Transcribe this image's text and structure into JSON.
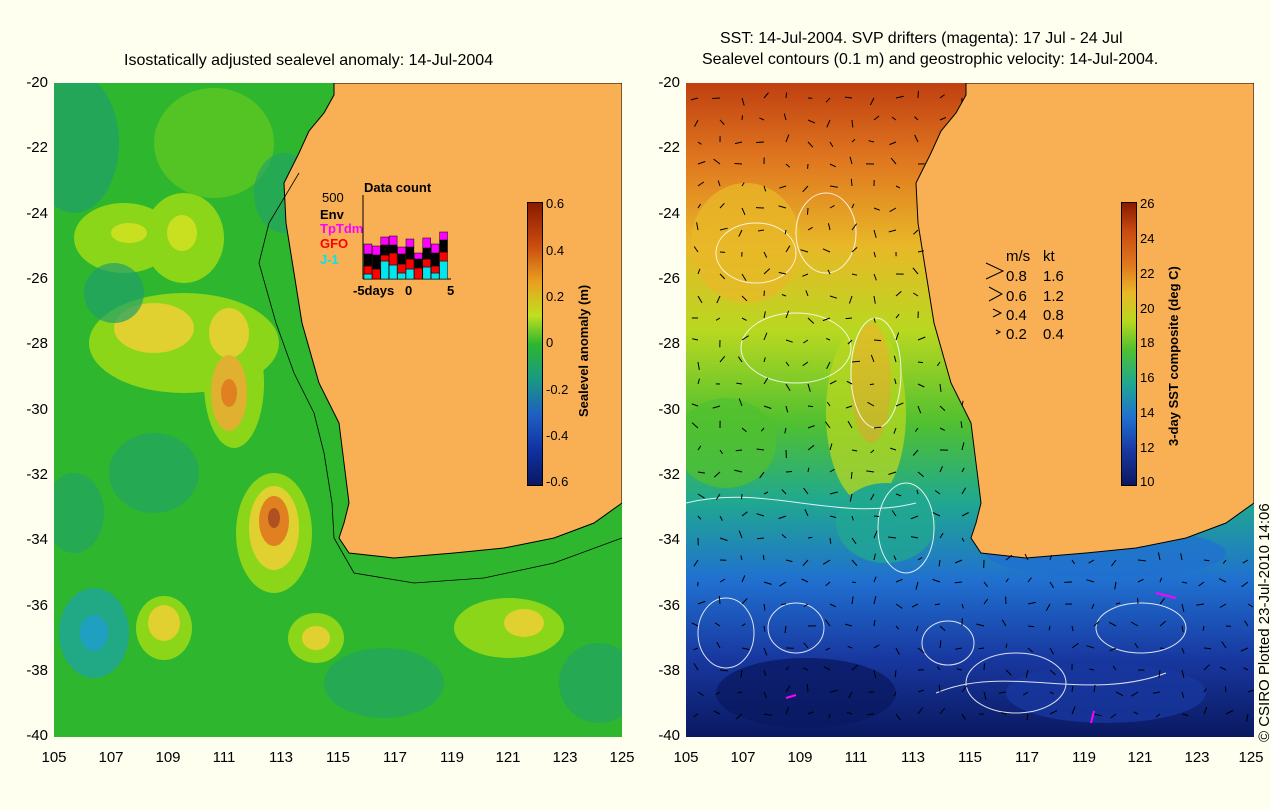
{
  "left_panel": {
    "title": "Isostatically adjusted sealevel anomaly: 14-Jul-2004",
    "colorbar": {
      "label": "Sealevel anomaly (m)",
      "ticks": [
        "0.6",
        "0.4",
        "0.2",
        "0",
        "-0.2",
        "-0.4",
        "-0.6"
      ]
    },
    "inset": {
      "title": "Data count",
      "count_label": "500",
      "legend": [
        {
          "label": "Env",
          "color": "#000000"
        },
        {
          "label": "TpTdm",
          "color": "#ff00ff"
        },
        {
          "label": "GFO",
          "color": "#ff0000"
        },
        {
          "label": "J-1",
          "color": "#00e5ee"
        }
      ],
      "x_labels": [
        "-5days",
        "0",
        "5"
      ]
    }
  },
  "right_panel": {
    "title_line1": "SST: 14-Jul-2004. SVP drifters (magenta): 17 Jul - 24 Jul",
    "title_line2": "Sealevel contours (0.1 m) and geostrophic velocity: 14-Jul-2004.",
    "colorbar": {
      "label": "3-day SST composite (deg C)",
      "ticks": [
        "26",
        "24",
        "22",
        "20",
        "18",
        "16",
        "14",
        "12",
        "10"
      ]
    },
    "velocity_legend": {
      "header_ms": "m/s",
      "header_kt": "kt",
      "rows": [
        {
          "ms": "0.8",
          "kt": "1.6"
        },
        {
          "ms": "0.6",
          "kt": "1.2"
        },
        {
          "ms": "0.4",
          "kt": "0.8"
        },
        {
          "ms": "0.2",
          "kt": "0.4"
        }
      ]
    }
  },
  "axes": {
    "y_ticks": [
      "-20",
      "-22",
      "-24",
      "-26",
      "-28",
      "-30",
      "-32",
      "-34",
      "-36",
      "-38",
      "-40"
    ],
    "x_ticks": [
      "105",
      "107",
      "109",
      "111",
      "113",
      "115",
      "117",
      "119",
      "121",
      "123",
      "125"
    ]
  },
  "credit": "© CSIRO Plotted 23-Jul-2010 14:06",
  "colors": {
    "land": "#f9b055",
    "ocean_base": "#2fb62f",
    "background": "#fffff0"
  }
}
